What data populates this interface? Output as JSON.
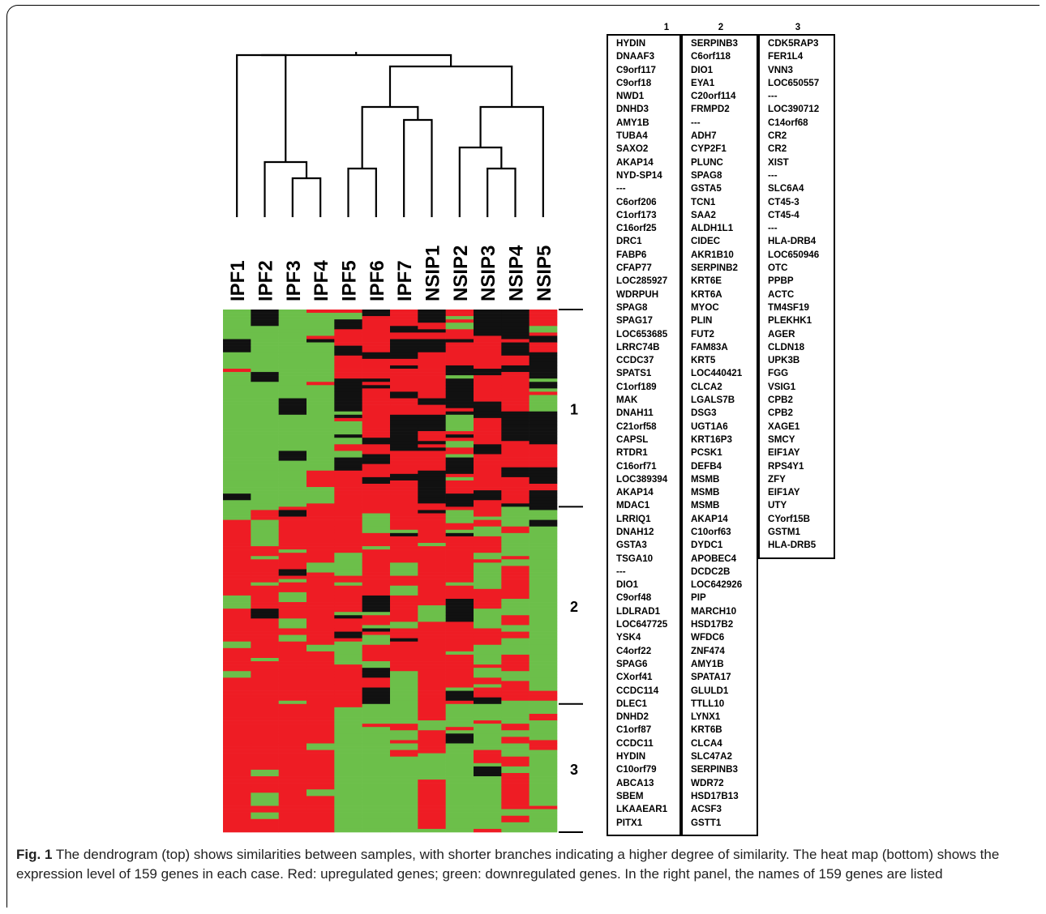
{
  "figure": {
    "caption_label": "Fig. 1",
    "caption_text": "The dendrogram (top) shows similarities between samples, with shorter branches indicating a higher degree of similarity. The heat map (bottom) shows the expression level of 159 genes in each case. Red: upregulated genes; green: downregulated genes. In the right panel, the names of 159 genes are listed"
  },
  "samples": [
    "IPF1",
    "IPF2",
    "IPF3",
    "IPF4",
    "IPF5",
    "IPF6",
    "IPF7",
    "NSIP1",
    "NSIP2",
    "NSIP3",
    "NSIP4",
    "NSIP5"
  ],
  "cluster_labels": [
    "1",
    "2",
    "3"
  ],
  "colors": {
    "up": "#ee1c24",
    "down": "#6cbf4a",
    "neutral": "#111111"
  },
  "gene_columns": [
    {
      "header": "1",
      "genes": [
        "HYDIN",
        "DNAAF3",
        "C9orf117",
        "C9orf18",
        "NWD1",
        "DNHD3",
        "AMY1B",
        "TUBA4",
        "SAXO2",
        "AKAP14",
        "NYD-SP14",
        "---",
        "C6orf206",
        "C1orf173",
        "C16orf25",
        "DRC1",
        "FABP6",
        "CFAP77",
        "LOC285927",
        "WDRPUH",
        "SPAG8",
        "SPAG17",
        "LOC653685",
        "LRRC74B",
        "CCDC37",
        "SPATS1",
        "C1orf189",
        "MAK",
        "DNAH11",
        "C21orf58",
        "CAPSL",
        "RTDR1",
        "C16orf71",
        "LOC389394",
        "AKAP14",
        "MDAC1",
        "LRRIQ1",
        "DNAH12",
        "GSTA3",
        "TSGA10",
        "---",
        "DIO1",
        "C9orf48",
        "LDLRAD1",
        "LOC647725",
        "YSK4",
        "C4orf22",
        "SPAG6",
        "CXorf41",
        "CCDC114",
        "DLEC1",
        "DNHD2",
        "C1orf87",
        "CCDC11",
        "HYDIN",
        "C10orf79",
        "ABCA13",
        "SBEM",
        "LKAAEAR1",
        "PITX1"
      ]
    },
    {
      "header": "2",
      "genes": [
        "SERPINB3",
        "C6orf118",
        "DIO1",
        "EYA1",
        "C20orf114",
        "FRMPD2",
        "---",
        "ADH7",
        "CYP2F1",
        "PLUNC",
        "SPAG8",
        "GSTA5",
        "TCN1",
        "SAA2",
        "ALDH1L1",
        "CIDEC",
        "AKR1B10",
        "SERPINB2",
        "KRT6E",
        "KRT6A",
        "MYOC",
        "PLIN",
        "FUT2",
        "FAM83A",
        "KRT5",
        "LOC440421",
        "CLCA2",
        "LGALS7B",
        "DSG3",
        "UGT1A6",
        "KRT16P3",
        "PCSK1",
        "DEFB4",
        "MSMB",
        "MSMB",
        "MSMB",
        "AKAP14",
        "C10orf63",
        "DYDC1",
        "APOBEC4",
        "DCDC2B",
        "LOC642926",
        "PIP",
        "MARCH10",
        "HSD17B2",
        "WFDC6",
        "ZNF474",
        "AMY1B",
        "SPATA17",
        "GLULD1",
        "TTLL10",
        "LYNX1",
        "KRT6B",
        "CLCA4",
        "SLC47A2",
        "SERPINB3",
        "WDR72",
        "HSD17B13",
        "ACSF3",
        "GSTT1"
      ]
    },
    {
      "header": "3",
      "genes": [
        "CDK5RAP3",
        "FER1L4",
        "VNN3",
        "LOC650557",
        "---",
        "LOC390712",
        "C14orf68",
        "CR2",
        "CR2",
        "XIST",
        "---",
        "SLC6A4",
        "CT45-3",
        "CT45-4",
        "---",
        "HLA-DRB4",
        "LOC650946",
        "OTC",
        "PPBP",
        "ACTC",
        "TM4SF19",
        "PLEKHK1",
        "AGER",
        "CLDN18",
        "UPK3B",
        "FGG",
        "VSIG1",
        "CPB2",
        "CPB2",
        "XAGE1",
        "SMCY",
        "EIF1AY",
        "RPS4Y1",
        "ZFY",
        "EIF1AY",
        "UTY",
        "CYorf15B",
        "GSTM1",
        "HLA-DRB5"
      ]
    }
  ]
}
